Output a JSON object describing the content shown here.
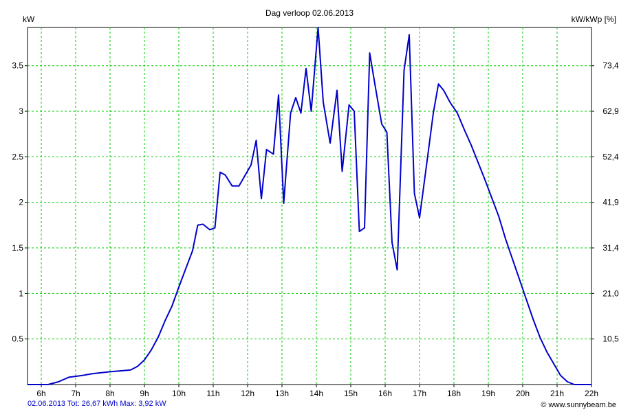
{
  "chart_data": {
    "type": "line",
    "title": "Dag  verloop 02.06.2013",
    "ylabel_left": "kW",
    "ylabel_right": "kW/kWp [%]",
    "xlim": [
      5.6,
      22.0
    ],
    "ylim": [
      0,
      3.92
    ],
    "x_ticks": [
      6,
      7,
      8,
      9,
      10,
      11,
      12,
      13,
      14,
      15,
      16,
      17,
      18,
      19,
      20,
      21,
      22
    ],
    "x_tick_labels": [
      "6h",
      "7h",
      "8h",
      "9h",
      "10h",
      "11h",
      "12h",
      "13h",
      "14h",
      "15h",
      "16h",
      "17h",
      "18h",
      "19h",
      "20h",
      "21h",
      "22h"
    ],
    "y_ticks_left": [
      0.5,
      1,
      1.5,
      2,
      2.5,
      3,
      3.5
    ],
    "y_tick_labels_left": [
      "0.5",
      "1",
      "1.5",
      "2",
      "2.5",
      "3",
      "3.5"
    ],
    "y_tick_labels_right": [
      "10,5",
      "21,0",
      "31,4",
      "41,9",
      "52,4",
      "62,9",
      "73,4"
    ],
    "grid": true,
    "line_color": "#0000cc",
    "grid_color": "#00cc00",
    "series": [
      {
        "values": [
          [
            5.6,
            0.0
          ],
          [
            6.2,
            0.0
          ],
          [
            6.5,
            0.03
          ],
          [
            6.8,
            0.08
          ],
          [
            7.2,
            0.1
          ],
          [
            7.5,
            0.12
          ],
          [
            8.0,
            0.14
          ],
          [
            8.3,
            0.15
          ],
          [
            8.6,
            0.16
          ],
          [
            8.8,
            0.2
          ],
          [
            9.0,
            0.27
          ],
          [
            9.2,
            0.38
          ],
          [
            9.4,
            0.52
          ],
          [
            9.6,
            0.7
          ],
          [
            9.8,
            0.86
          ],
          [
            10.0,
            1.07
          ],
          [
            10.2,
            1.27
          ],
          [
            10.4,
            1.47
          ],
          [
            10.55,
            1.75
          ],
          [
            10.7,
            1.76
          ],
          [
            10.9,
            1.7
          ],
          [
            11.05,
            1.72
          ],
          [
            11.2,
            2.33
          ],
          [
            11.35,
            2.3
          ],
          [
            11.55,
            2.18
          ],
          [
            11.75,
            2.18
          ],
          [
            12.1,
            2.41
          ],
          [
            12.25,
            2.68
          ],
          [
            12.4,
            2.04
          ],
          [
            12.55,
            2.58
          ],
          [
            12.75,
            2.53
          ],
          [
            12.9,
            3.18
          ],
          [
            13.05,
            1.99
          ],
          [
            13.25,
            2.98
          ],
          [
            13.4,
            3.15
          ],
          [
            13.55,
            2.98
          ],
          [
            13.7,
            3.47
          ],
          [
            13.85,
            3.0
          ],
          [
            14.05,
            3.92
          ],
          [
            14.2,
            3.1
          ],
          [
            14.4,
            2.65
          ],
          [
            14.6,
            3.23
          ],
          [
            14.75,
            2.34
          ],
          [
            14.95,
            3.07
          ],
          [
            15.1,
            3.0
          ],
          [
            15.25,
            1.68
          ],
          [
            15.4,
            1.72
          ],
          [
            15.55,
            3.64
          ],
          [
            15.7,
            3.3
          ],
          [
            15.9,
            2.86
          ],
          [
            16.05,
            2.77
          ],
          [
            16.2,
            1.56
          ],
          [
            16.35,
            1.26
          ],
          [
            16.55,
            3.45
          ],
          [
            16.7,
            3.84
          ],
          [
            16.85,
            2.1
          ],
          [
            17.0,
            1.83
          ],
          [
            17.2,
            2.4
          ],
          [
            17.4,
            2.98
          ],
          [
            17.55,
            3.3
          ],
          [
            17.7,
            3.23
          ],
          [
            17.9,
            3.09
          ],
          [
            18.1,
            2.98
          ],
          [
            18.3,
            2.8
          ],
          [
            18.5,
            2.63
          ],
          [
            18.7,
            2.44
          ],
          [
            18.9,
            2.25
          ],
          [
            19.1,
            2.05
          ],
          [
            19.3,
            1.85
          ],
          [
            19.5,
            1.6
          ],
          [
            19.7,
            1.38
          ],
          [
            19.9,
            1.16
          ],
          [
            20.1,
            0.94
          ],
          [
            20.3,
            0.72
          ],
          [
            20.5,
            0.52
          ],
          [
            20.7,
            0.36
          ],
          [
            20.9,
            0.23
          ],
          [
            21.1,
            0.1
          ],
          [
            21.3,
            0.03
          ],
          [
            21.5,
            0.0
          ],
          [
            22.0,
            0.0
          ]
        ]
      }
    ]
  },
  "footer": {
    "summary": "02.06.2013 Tot: 26,67 kWh Max: 3,92 kW",
    "credit": "© www.sunnybeam.be"
  }
}
